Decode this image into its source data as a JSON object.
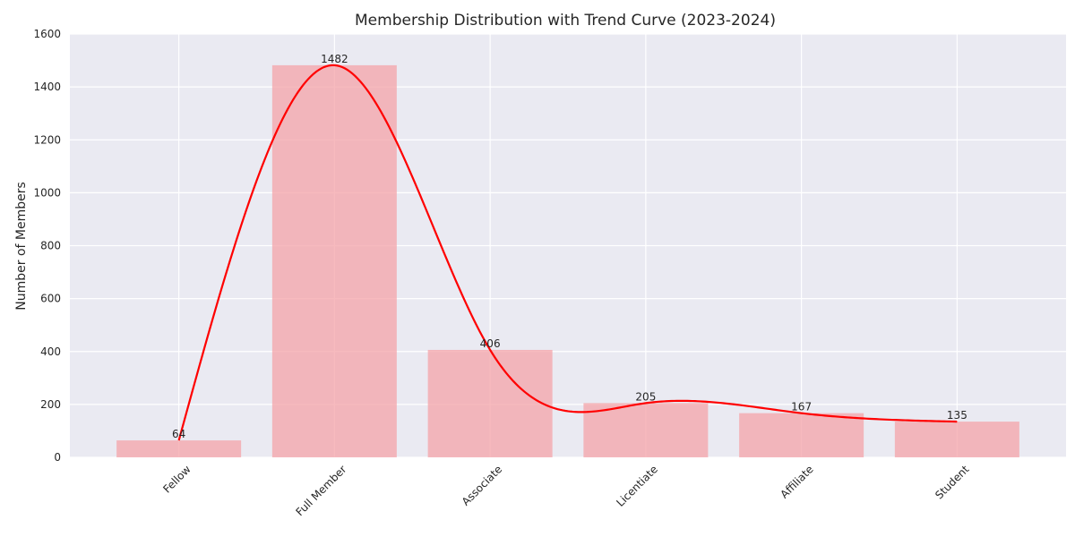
{
  "chart_data": {
    "type": "bar",
    "title": "Membership Distribution with Trend Curve (2023-2024)",
    "xlabel": "",
    "ylabel": "Number of Members",
    "categories": [
      "Fellow",
      "Full Member",
      "Associate",
      "Licentiate",
      "Affiliate",
      "Student"
    ],
    "values": [
      64,
      1482,
      406,
      205,
      167,
      135
    ],
    "data_labels": [
      "64",
      "1482",
      "406",
      "205",
      "167",
      "135"
    ],
    "ylim": [
      0,
      1600
    ],
    "yticks": [
      0,
      200,
      400,
      600,
      800,
      1000,
      1200,
      1400,
      1600
    ],
    "ytick_labels": [
      "0",
      "200",
      "400",
      "600",
      "800",
      "1000",
      "1200",
      "1400",
      "1600"
    ],
    "trend_curve": {
      "type": "smooth-line",
      "color": "#ff0000"
    },
    "grid": true,
    "style": {
      "background": "#eaeaf2",
      "grid_color": "#ffffff",
      "bar_color": "#f4a3a8",
      "curve_color": "#ff0000"
    }
  }
}
